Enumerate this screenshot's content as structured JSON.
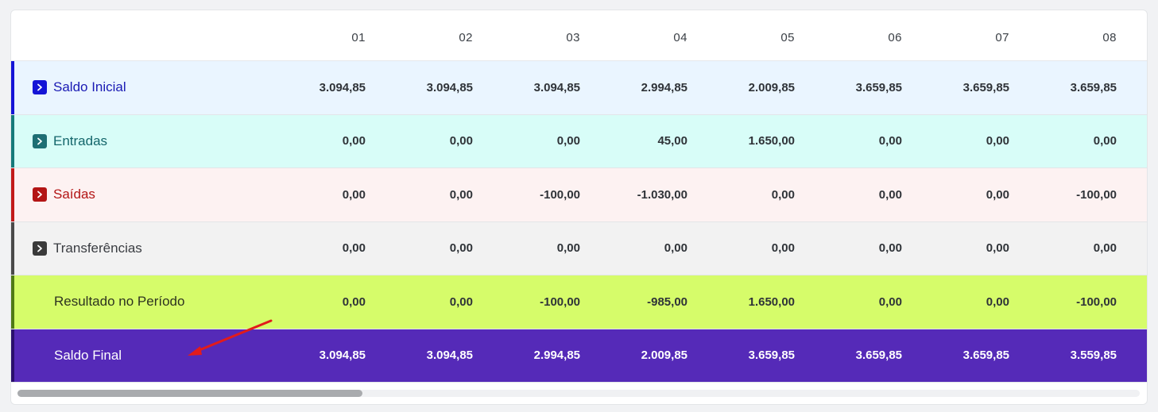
{
  "columns": [
    "01",
    "02",
    "03",
    "04",
    "05",
    "06",
    "07",
    "08"
  ],
  "rows": [
    {
      "key": "saldo_inicial",
      "label": "Saldo Inicial",
      "expandable": true,
      "bg": "#eaf5ff",
      "bar": "#1414d6",
      "text": "#1a1ab4",
      "chev": "#1414d6",
      "values_color": "#2f3338",
      "values": [
        "3.094,85",
        "3.094,85",
        "3.094,85",
        "2.994,85",
        "2.009,85",
        "3.659,85",
        "3.659,85",
        "3.659,85"
      ]
    },
    {
      "key": "entradas",
      "label": "Entradas",
      "expandable": true,
      "bg": "#d8fdf8",
      "bar": "#157a7a",
      "text": "#14666b",
      "chev": "#1e6e74",
      "values_color": "#2f3338",
      "values": [
        "0,00",
        "0,00",
        "0,00",
        "45,00",
        "1.650,00",
        "0,00",
        "0,00",
        "0,00"
      ]
    },
    {
      "key": "saidas",
      "label": "Saídas",
      "expandable": true,
      "bg": "#fdf2f2",
      "bar": "#c21a1a",
      "text": "#b31515",
      "chev": "#b31515",
      "values_color": "#2f3338",
      "values": [
        "0,00",
        "0,00",
        "-100,00",
        "-1.030,00",
        "0,00",
        "0,00",
        "0,00",
        "-100,00"
      ]
    },
    {
      "key": "transferencias",
      "label": "Transferências",
      "expandable": true,
      "bg": "#f2f2f2",
      "bar": "#4a4a4a",
      "text": "#3a3d42",
      "chev": "#3a3a3a",
      "values_color": "#2f3338",
      "values": [
        "0,00",
        "0,00",
        "0,00",
        "0,00",
        "0,00",
        "0,00",
        "0,00",
        "0,00"
      ]
    },
    {
      "key": "resultado",
      "label": "Resultado no Período",
      "expandable": false,
      "bg": "#d6fc6a",
      "bar": "#4f7a14",
      "text": "#2d3320",
      "chev": "",
      "values_color": "#2f3338",
      "values": [
        "0,00",
        "0,00",
        "-100,00",
        "-985,00",
        "1.650,00",
        "0,00",
        "0,00",
        "-100,00"
      ]
    },
    {
      "key": "saldo_final",
      "label": "Saldo Final",
      "expandable": false,
      "bg": "#552ab8",
      "bar": "#2a0f6e",
      "text": "#ffffff",
      "chev": "",
      "values_color": "#ffffff",
      "values": [
        "3.094,85",
        "3.094,85",
        "2.994,85",
        "2.009,85",
        "3.659,85",
        "3.659,85",
        "3.659,85",
        "3.559,85"
      ]
    }
  ],
  "annotation": {
    "color": "#e21b1b",
    "points_to": "saldo_final"
  }
}
